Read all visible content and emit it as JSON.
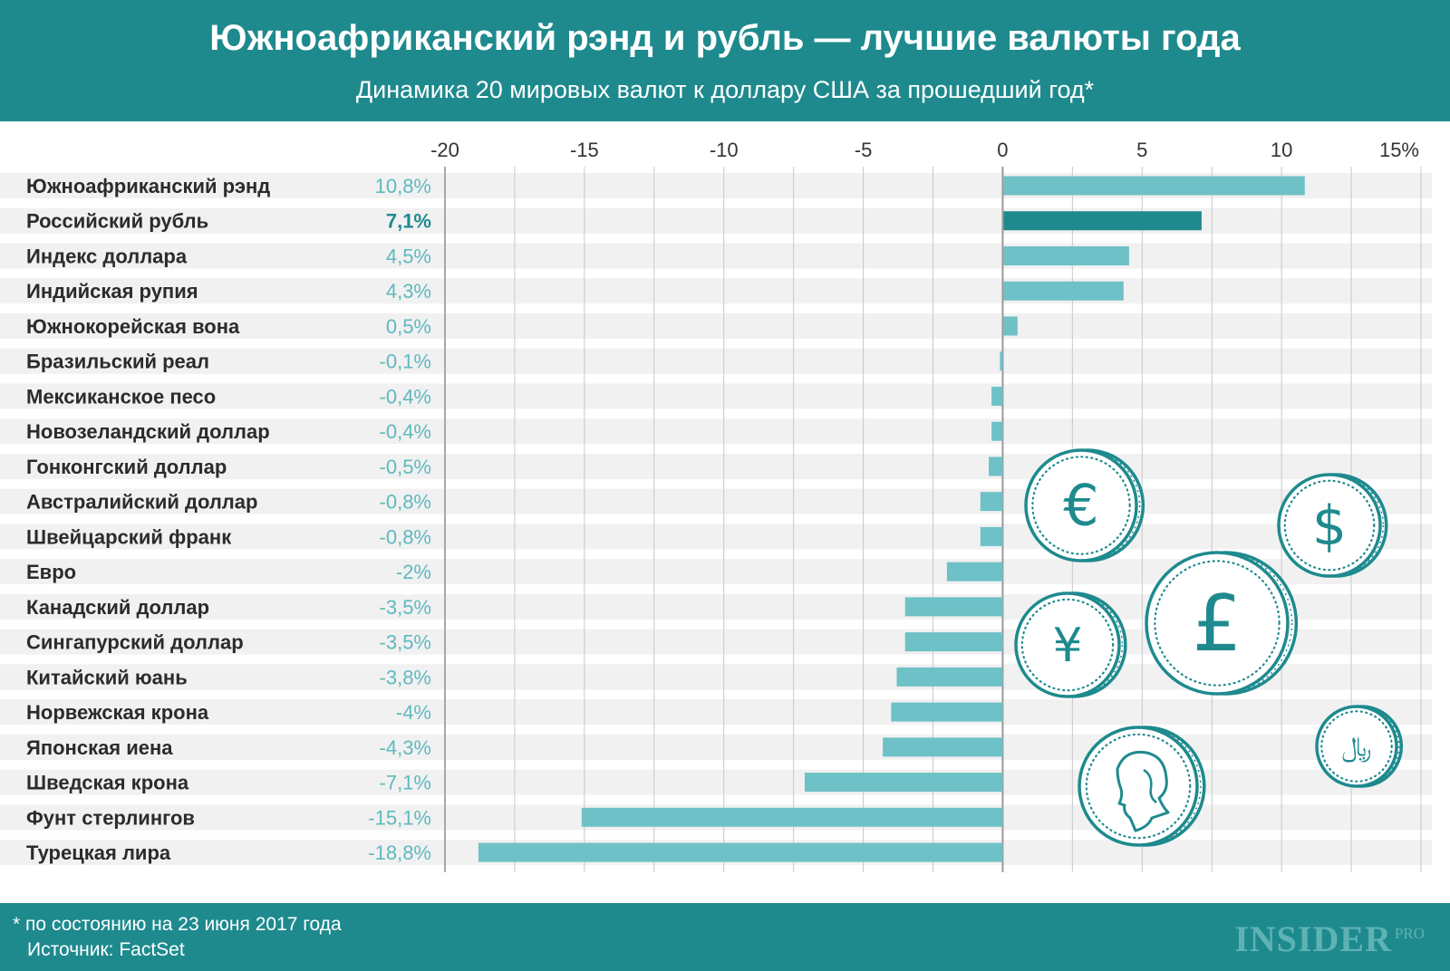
{
  "header": {
    "title": "Южноафриканский рэнд и рубль — лучшие валюты года",
    "subtitle": "Динамика 20 мировых валют к доллару США за прошедший год*"
  },
  "colors": {
    "header_bg": "#1e8a8e",
    "bar": "#6ec1c7",
    "bar_highlight": "#1e8a8e",
    "value_label": "#5fb9bf",
    "value_label_highlight": "#1e8a8e",
    "row_stripe": "#f1f1f1",
    "coin": "#1e8a8e"
  },
  "chart_data": {
    "type": "bar",
    "orientation": "horizontal",
    "title": "Южноафриканский рэнд и рубль — лучшие валюты года",
    "subtitle": "Динамика 20 мировых валют к доллару США за прошедший год*",
    "xlim": [
      -20,
      15
    ],
    "x_ticks": [
      "-20",
      "-15",
      "-10",
      "-5",
      "0",
      "5",
      "10",
      "15%"
    ],
    "x_tick_values": [
      -20,
      -15,
      -10,
      -5,
      0,
      5,
      10,
      15
    ],
    "grid": true,
    "highlight_category": "Российский рубль",
    "categories": [
      "Южноафриканский рэнд",
      "Российский рубль",
      "Индекс доллара",
      "Индийская рупия",
      "Южнокорейская вона",
      "Бразильский реал",
      "Мексиканское песо",
      "Новозеландский доллар",
      "Гонконгский доллар",
      "Австралийский доллар",
      "Швейцарский франк",
      "Евро",
      "Канадский доллар",
      "Сингапурский доллар",
      "Китайский юань",
      "Норвежская крона",
      "Японская иена",
      "Шведская крона",
      "Фунт стерлингов",
      "Турецкая лира"
    ],
    "values": [
      10.8,
      7.1,
      4.5,
      4.3,
      0.5,
      -0.1,
      -0.4,
      -0.4,
      -0.5,
      -0.8,
      -0.8,
      -2,
      -3.5,
      -3.5,
      -3.8,
      -4,
      -4.3,
      -7.1,
      -15.1,
      -18.8
    ],
    "value_labels": [
      "10,8%",
      "7,1%",
      "4,5%",
      "4,3%",
      "0,5%",
      "-0,1%",
      "-0,4%",
      "-0,4%",
      "-0,5%",
      "-0,8%",
      "-0,8%",
      "-2%",
      "-3,5%",
      "-3,5%",
      "-3,8%",
      "-4%",
      "-4,3%",
      "-7,1%",
      "-15,1%",
      "-18,8%"
    ]
  },
  "decor": {
    "coins": [
      {
        "symbol": "€",
        "icon": "euro-coin-icon"
      },
      {
        "symbol": "$",
        "icon": "dollar-coin-icon"
      },
      {
        "symbol": "£",
        "icon": "pound-coin-icon"
      },
      {
        "symbol": "¥",
        "icon": "yen-coin-icon"
      },
      {
        "symbol": "﷼",
        "icon": "rial-coin-icon"
      },
      {
        "symbol": "",
        "icon": "portrait-coin-icon"
      }
    ]
  },
  "footer": {
    "note": "* по состоянию на 23 июня 2017 года",
    "source": "Источник: FactSet",
    "brand": "INSIDER",
    "brand_suffix": "PRO"
  }
}
